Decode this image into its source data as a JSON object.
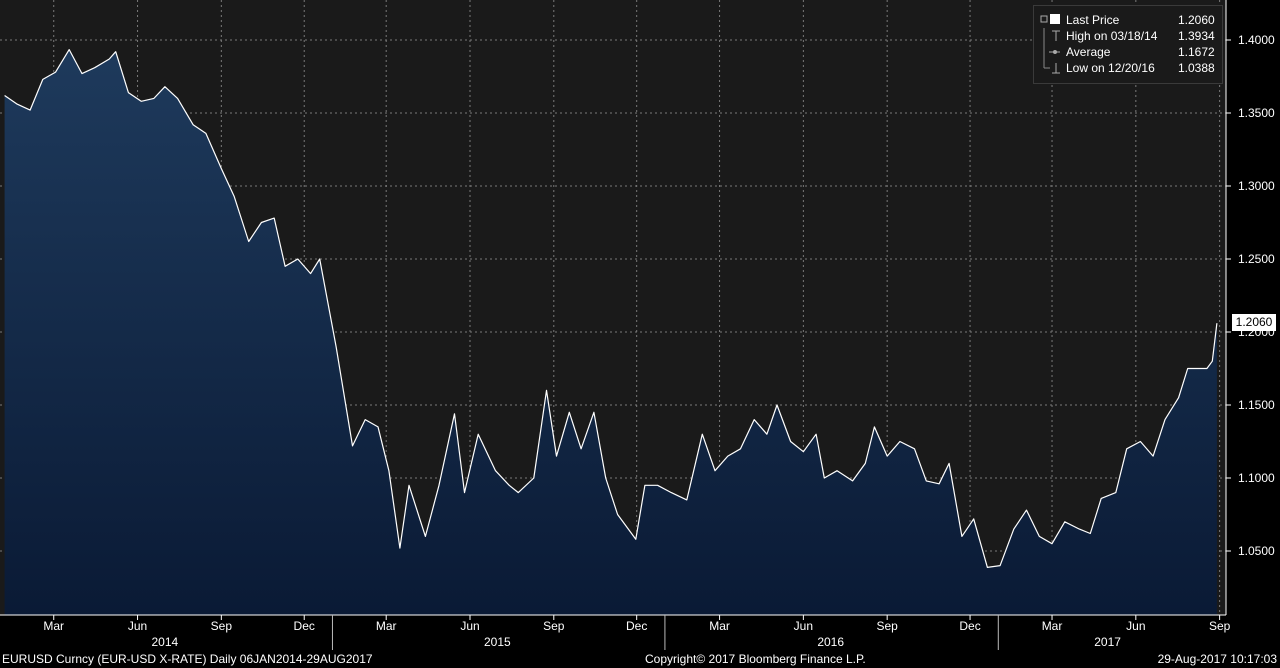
{
  "chart_data": {
    "type": "area",
    "title": "",
    "xlabel": "",
    "ylabel": "",
    "x_range": [
      "2014-01-06",
      "2017-08-29"
    ],
    "ylim": [
      1.0,
      1.4
    ],
    "y_ticks": [
      "1.4000",
      "1.3500",
      "1.3000",
      "1.2500",
      "1.2000",
      "1.1500",
      "1.1000",
      "1.0500"
    ],
    "grid": true,
    "legend_position": "top-right",
    "colors": {
      "line": "#ffffff",
      "fill_top": "#1e3a5c",
      "fill_bottom": "#0a1a35",
      "background": "#1a1a1a",
      "grid": "#7a7a7a"
    },
    "months": [
      {
        "label": "Mar",
        "date": "2014-03-01"
      },
      {
        "label": "Jun",
        "date": "2014-06-01"
      },
      {
        "label": "Sep",
        "date": "2014-09-01"
      },
      {
        "label": "Dec",
        "date": "2014-12-01"
      },
      {
        "label": "Mar",
        "date": "2015-03-01"
      },
      {
        "label": "Jun",
        "date": "2015-06-01"
      },
      {
        "label": "Sep",
        "date": "2015-09-01"
      },
      {
        "label": "Dec",
        "date": "2015-12-01"
      },
      {
        "label": "Mar",
        "date": "2016-03-01"
      },
      {
        "label": "Jun",
        "date": "2016-06-01"
      },
      {
        "label": "Sep",
        "date": "2016-09-01"
      },
      {
        "label": "Dec",
        "date": "2016-12-01"
      },
      {
        "label": "Mar",
        "date": "2017-03-01"
      },
      {
        "label": "Jun",
        "date": "2017-06-01"
      },
      {
        "label": "Sep",
        "date": "2017-09-01"
      }
    ],
    "years": [
      {
        "label": "2014",
        "date": "2014-07-01"
      },
      {
        "label": "2015",
        "date": "2015-07-01"
      },
      {
        "label": "2016",
        "date": "2016-07-01"
      },
      {
        "label": "2017",
        "date": "2017-05-01"
      }
    ],
    "year_separators": [
      "2015-01-01",
      "2016-01-01",
      "2017-01-01"
    ],
    "series": [
      {
        "name": "Last Price",
        "points": [
          [
            "2014-01-06",
            1.362
          ],
          [
            "2014-01-20",
            1.356
          ],
          [
            "2014-02-03",
            1.352
          ],
          [
            "2014-02-17",
            1.373
          ],
          [
            "2014-03-03",
            1.378
          ],
          [
            "2014-03-18",
            1.3934
          ],
          [
            "2014-04-01",
            1.377
          ],
          [
            "2014-04-15",
            1.381
          ],
          [
            "2014-05-01",
            1.387
          ],
          [
            "2014-05-08",
            1.392
          ],
          [
            "2014-05-22",
            1.364
          ],
          [
            "2014-06-05",
            1.358
          ],
          [
            "2014-06-19",
            1.36
          ],
          [
            "2014-07-01",
            1.368
          ],
          [
            "2014-07-15",
            1.36
          ],
          [
            "2014-08-01",
            1.342
          ],
          [
            "2014-08-15",
            1.336
          ],
          [
            "2014-09-01",
            1.312
          ],
          [
            "2014-09-15",
            1.293
          ],
          [
            "2014-10-01",
            1.262
          ],
          [
            "2014-10-15",
            1.275
          ],
          [
            "2014-10-29",
            1.278
          ],
          [
            "2014-11-10",
            1.245
          ],
          [
            "2014-11-24",
            1.25
          ],
          [
            "2014-12-08",
            1.24
          ],
          [
            "2014-12-18",
            1.25
          ],
          [
            "2015-01-05",
            1.19
          ],
          [
            "2015-01-23",
            1.122
          ],
          [
            "2015-02-06",
            1.14
          ],
          [
            "2015-02-20",
            1.135
          ],
          [
            "2015-03-04",
            1.105
          ],
          [
            "2015-03-16",
            1.052
          ],
          [
            "2015-03-26",
            1.095
          ],
          [
            "2015-04-13",
            1.06
          ],
          [
            "2015-04-28",
            1.095
          ],
          [
            "2015-05-15",
            1.144
          ],
          [
            "2015-05-26",
            1.09
          ],
          [
            "2015-06-10",
            1.13
          ],
          [
            "2015-06-29",
            1.105
          ],
          [
            "2015-07-14",
            1.095
          ],
          [
            "2015-07-24",
            1.09
          ],
          [
            "2015-08-10",
            1.1
          ],
          [
            "2015-08-24",
            1.16
          ],
          [
            "2015-09-04",
            1.115
          ],
          [
            "2015-09-18",
            1.145
          ],
          [
            "2015-10-01",
            1.12
          ],
          [
            "2015-10-15",
            1.145
          ],
          [
            "2015-10-28",
            1.1
          ],
          [
            "2015-11-10",
            1.075
          ],
          [
            "2015-11-30",
            1.058
          ],
          [
            "2015-12-10",
            1.095
          ],
          [
            "2015-12-24",
            1.095
          ],
          [
            "2016-01-08",
            1.09
          ],
          [
            "2016-01-25",
            1.085
          ],
          [
            "2016-02-11",
            1.13
          ],
          [
            "2016-02-25",
            1.105
          ],
          [
            "2016-03-10",
            1.115
          ],
          [
            "2016-03-24",
            1.12
          ],
          [
            "2016-04-08",
            1.14
          ],
          [
            "2016-04-22",
            1.13
          ],
          [
            "2016-05-03",
            1.15
          ],
          [
            "2016-05-18",
            1.125
          ],
          [
            "2016-06-01",
            1.118
          ],
          [
            "2016-06-15",
            1.13
          ],
          [
            "2016-06-24",
            1.1
          ],
          [
            "2016-07-08",
            1.105
          ],
          [
            "2016-07-25",
            1.098
          ],
          [
            "2016-08-08",
            1.11
          ],
          [
            "2016-08-18",
            1.135
          ],
          [
            "2016-09-01",
            1.115
          ],
          [
            "2016-09-15",
            1.125
          ],
          [
            "2016-10-01",
            1.12
          ],
          [
            "2016-10-14",
            1.098
          ],
          [
            "2016-10-28",
            1.096
          ],
          [
            "2016-11-08",
            1.11
          ],
          [
            "2016-11-22",
            1.06
          ],
          [
            "2016-12-05",
            1.072
          ],
          [
            "2016-12-20",
            1.0388
          ],
          [
            "2017-01-03",
            1.04
          ],
          [
            "2017-01-18",
            1.065
          ],
          [
            "2017-02-01",
            1.078
          ],
          [
            "2017-02-15",
            1.06
          ],
          [
            "2017-03-01",
            1.055
          ],
          [
            "2017-03-15",
            1.07
          ],
          [
            "2017-03-31",
            1.065
          ],
          [
            "2017-04-12",
            1.062
          ],
          [
            "2017-04-24",
            1.086
          ],
          [
            "2017-05-10",
            1.09
          ],
          [
            "2017-05-22",
            1.12
          ],
          [
            "2017-06-06",
            1.125
          ],
          [
            "2017-06-20",
            1.115
          ],
          [
            "2017-07-03",
            1.14
          ],
          [
            "2017-07-18",
            1.155
          ],
          [
            "2017-07-28",
            1.175
          ],
          [
            "2017-08-10",
            1.175
          ],
          [
            "2017-08-18",
            1.175
          ],
          [
            "2017-08-24",
            1.18
          ],
          [
            "2017-08-29",
            1.206
          ]
        ]
      }
    ],
    "legend": [
      {
        "label": "Last Price",
        "value": "1.2060",
        "symbol": "square"
      },
      {
        "label": "High on 03/18/14",
        "value": "1.3934",
        "symbol": "high"
      },
      {
        "label": "Average",
        "value": "1.1672",
        "symbol": "average"
      },
      {
        "label": "Low on 12/20/16",
        "value": "1.0388",
        "symbol": "low"
      }
    ],
    "last_value_label": "1.2060"
  },
  "footer": {
    "left": "EURUSD Curncy (EUR-USD X-RATE)  Daily 06JAN2014-29AUG2017",
    "center": "Copyright© 2017 Bloomberg Finance L.P.",
    "right": "29-Aug-2017 10:17:03"
  }
}
